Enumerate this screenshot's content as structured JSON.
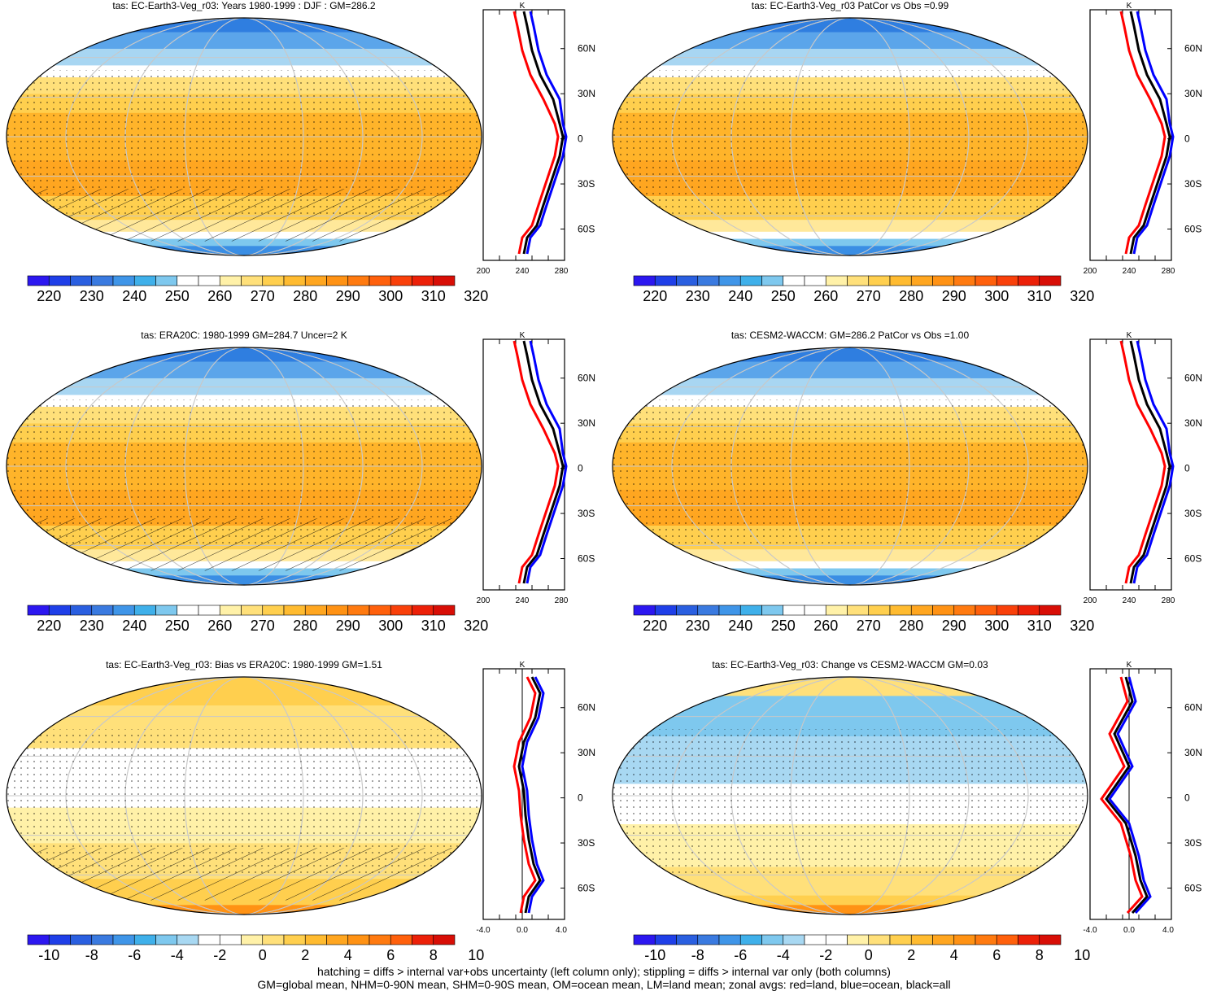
{
  "panels": [
    {
      "title": "tas: EC-Earth3-Veg_r03: Years 1980-1999 : DJF : GM=286.2",
      "kind": "abs",
      "hatch": true
    },
    {
      "title": "tas: EC-Earth3-Veg_r03 PatCor vs Obs =0.99",
      "kind": "abs",
      "hatch": false
    },
    {
      "title": "tas: ERA20C: 1980-1999 GM=284.7 Uncer=2 K",
      "kind": "abs",
      "hatch": true
    },
    {
      "title": "tas: CESM2-WACCM: GM=286.2 PatCor vs Obs =1.00",
      "kind": "abs",
      "hatch": false
    },
    {
      "title": "tas: EC-Earth3-Veg_r03: Bias vs ERA20C: 1980-1999 GM=1.51",
      "kind": "diff",
      "hatch": true
    },
    {
      "title": "tas: EC-Earth3-Veg_r03: Change vs CESM2-WACCM GM=0.03",
      "kind": "diff",
      "hatch": false
    }
  ],
  "colorbars": {
    "abs": {
      "labels": [
        "220",
        "230",
        "240",
        "250",
        "260",
        "270",
        "280",
        "290",
        "300",
        "310",
        "320"
      ],
      "colors": [
        "#2c17f0",
        "#1f3fe8",
        "#2a5fe0",
        "#3a7ae0",
        "#3f95e8",
        "#3fb0ea",
        "#7ec8ee",
        "#ffffff",
        "#ffffff",
        "#fff1a8",
        "#ffe07a",
        "#ffcf4e",
        "#ffbb30",
        "#ffa620",
        "#ff9214",
        "#ff7a10",
        "#ff600c",
        "#f9400a",
        "#ec2008",
        "#d80e06"
      ]
    },
    "diff": {
      "labels": [
        "-10",
        "-8",
        "-6",
        "-4",
        "-2",
        "0",
        "2",
        "4",
        "6",
        "8",
        "10"
      ],
      "colors": [
        "#2c17f0",
        "#1f3fe8",
        "#2a5fe0",
        "#3a7ae0",
        "#3f95e8",
        "#3fb0ea",
        "#7ec8ee",
        "#a8d8f2",
        "#ffffff",
        "#ffffff",
        "#fff1a8",
        "#ffe07a",
        "#ffcf4e",
        "#ffbb30",
        "#ffa620",
        "#ff9214",
        "#ff7a10",
        "#ff600c",
        "#ec2008",
        "#d80e06"
      ]
    }
  },
  "zonal": {
    "unit": "K",
    "abs_xticks": [
      "200",
      "240",
      "280"
    ],
    "diff_left_xticks": [
      "-4.0",
      "0.0",
      "4.0"
    ],
    "diff_right_xticks": [
      "-4.0",
      "0.0",
      "4.0"
    ],
    "lat_labels_top": [
      "60N",
      "30N",
      "0",
      "30S",
      "60S"
    ]
  },
  "chart_data": [
    {
      "type": "heatmap",
      "title": "tas: EC-Earth3-Veg_r03: Years 1980-1999 : DJF : GM=286.2",
      "colorbar": {
        "labels": [
          "220",
          "230",
          "240",
          "250",
          "260",
          "270",
          "280",
          "290",
          "300",
          "310",
          "320"
        ]
      },
      "zonal_xticks": [
        "200",
        "240",
        "280"
      ],
      "zonal_yticks": [
        "60N",
        "30N",
        "0",
        "30S",
        "60S"
      ],
      "series": [
        {
          "name": "red=land"
        },
        {
          "name": "blue=ocean"
        },
        {
          "name": "black=all"
        }
      ]
    },
    {
      "type": "heatmap",
      "title": "tas: EC-Earth3-Veg_r03 PatCor vs Obs =0.99"
    },
    {
      "type": "heatmap",
      "title": "tas: ERA20C: 1980-1999 GM=284.7 Uncer=2 K"
    },
    {
      "type": "heatmap",
      "title": "tas: CESM2-WACCM: GM=286.2 PatCor vs Obs =1.00"
    },
    {
      "type": "heatmap",
      "title": "tas: EC-Earth3-Veg_r03: Bias vs ERA20C: 1980-1999 GM=1.51",
      "colorbar": {
        "labels": [
          "-10",
          "-8",
          "-6",
          "-4",
          "-2",
          "0",
          "2",
          "4",
          "6",
          "8",
          "10"
        ]
      },
      "zonal_xticks": [
        "-4.0",
        "0.0",
        "4.0"
      ]
    },
    {
      "type": "heatmap",
      "title": "tas: EC-Earth3-Veg_r03: Change vs CESM2-WACCM GM=0.03"
    }
  ],
  "footer": {
    "line1": "hatching = diffs > internal var+obs uncertainty (left column only); stippling = diffs > internal var only (both columns)",
    "line2": "GM=global mean, NHM=0-90N mean, SHM=0-90S mean, OM=ocean mean, LM=land mean; zonal avgs: red=land, blue=ocean, black=all"
  }
}
